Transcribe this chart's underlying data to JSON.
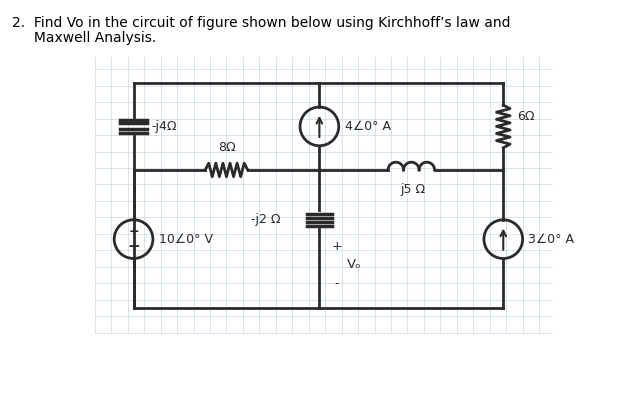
{
  "title_line1": "2.  Find Vo in the circuit of figure shown below using Kirchhoff’s law and",
  "title_line2": "     Maxwell Analysis.",
  "bg_color": "#ffffff",
  "grid_color": "#c8d8e8",
  "circuit_color": "#2a2a2a",
  "label_j4": "-j4Ω",
  "label_8": "8Ω",
  "label_4A": "4∠0° A",
  "label_j5": "j5 Ω",
  "label_6": "6Ω",
  "label_3A": "3∠0° A",
  "label_10V": "10∠0° V",
  "label_j2": "-j2 Ω",
  "label_Vo": "Vₒ",
  "label_plus_vo": "+",
  "label_minus_vo": "-",
  "label_plus_vs": "+"
}
